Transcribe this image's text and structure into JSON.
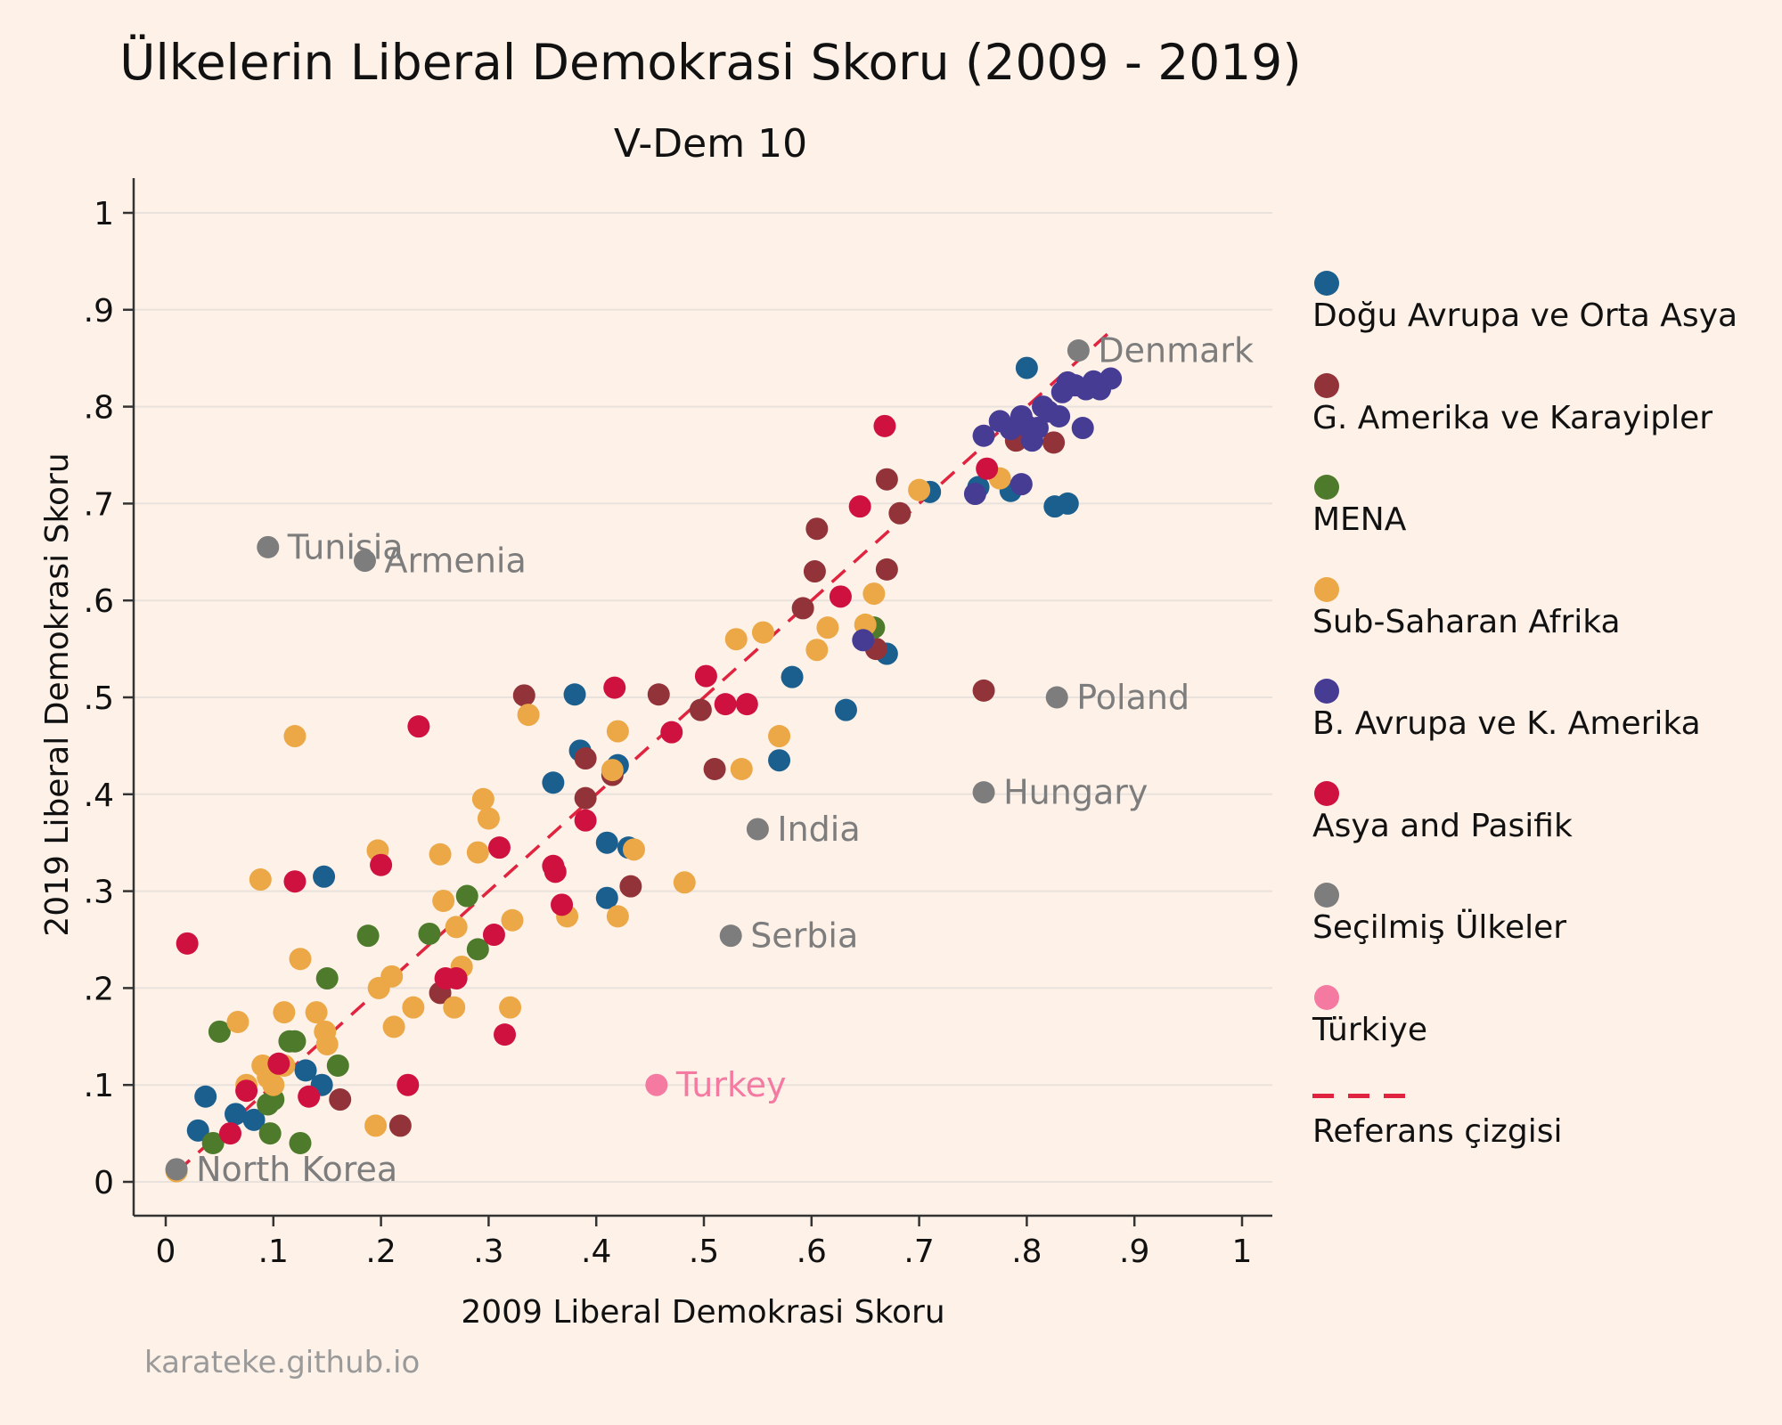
{
  "title": "Ülkelerin Liberal Demokrasi Skoru (2009 - 2019)",
  "subtitle": "V-Dem 10",
  "credit": "karateke.github.io",
  "colors": {
    "background": "#fdf1e8",
    "grid": "#e9e2dc",
    "axis": "#333333",
    "reference": "#e0243f"
  },
  "legend": [
    {
      "key": "eastern_europe",
      "label": "Doğu Avrupa ve Orta Asya",
      "color": "#1b5f8e"
    },
    {
      "key": "latin_america",
      "label": "G. Amerika ve Karayipler",
      "color": "#913339"
    },
    {
      "key": "mena",
      "label": "MENA",
      "color": "#4e7a2c"
    },
    {
      "key": "africa",
      "label": "Sub-Saharan Afrika",
      "color": "#eca846"
    },
    {
      "key": "west",
      "label": "B. Avrupa ve K. Amerika",
      "color": "#463c93"
    },
    {
      "key": "asia",
      "label": "Asya and Pasifik",
      "color": "#cf1140"
    },
    {
      "key": "selected",
      "label": "Seçilmiş Ülkeler",
      "color": "#7d7d7d"
    },
    {
      "key": "turkiye",
      "label": "Türkiye",
      "color": "#f47aa1"
    },
    {
      "key": "reference",
      "label": "Referans çizgisi",
      "color": "#e0243f",
      "style": "dashed-line"
    }
  ],
  "chart_data": {
    "type": "scatter",
    "title": "Ülkelerin Liberal Demokrasi Skoru (2009 - 2019)",
    "subtitle": "V-Dem 10",
    "xlabel": "2009 Liberal Demokrasi Skoru",
    "ylabel": "2019 Liberal Demokrasi Skoru",
    "xlim": [
      0,
      1
    ],
    "ylim": [
      0,
      1
    ],
    "x_ticks": [
      0,
      0.1,
      0.2,
      0.3,
      0.4,
      0.5,
      0.6,
      0.7,
      0.8,
      0.9,
      1
    ],
    "x_tick_labels": [
      "0",
      ".1",
      ".2",
      ".3",
      ".4",
      ".5",
      ".6",
      ".7",
      ".8",
      ".9",
      "1"
    ],
    "y_ticks": [
      0,
      0.1,
      0.2,
      0.3,
      0.4,
      0.5,
      0.6,
      0.7,
      0.8,
      0.9,
      1
    ],
    "y_tick_labels": [
      "0",
      ".1",
      ".2",
      ".3",
      ".4",
      ".5",
      ".6",
      ".7",
      ".8",
      ".9",
      "1"
    ],
    "grid": "horizontal",
    "legend_position": "right",
    "reference_line": {
      "name": "Referans çizgisi",
      "x": [
        0.01,
        0.88
      ],
      "y": [
        0.01,
        0.88
      ],
      "style": "dashed"
    },
    "series": [
      {
        "name": "Doğu Avrupa ve Orta Asya",
        "key": "eastern_europe",
        "points": [
          [
            0.03,
            0.053
          ],
          [
            0.037,
            0.088
          ],
          [
            0.065,
            0.07
          ],
          [
            0.082,
            0.064
          ],
          [
            0.13,
            0.115
          ],
          [
            0.145,
            0.1
          ],
          [
            0.147,
            0.315
          ],
          [
            0.36,
            0.412
          ],
          [
            0.38,
            0.503
          ],
          [
            0.385,
            0.445
          ],
          [
            0.41,
            0.35
          ],
          [
            0.41,
            0.293
          ],
          [
            0.42,
            0.43
          ],
          [
            0.43,
            0.345
          ],
          [
            0.57,
            0.435
          ],
          [
            0.582,
            0.521
          ],
          [
            0.632,
            0.487
          ],
          [
            0.67,
            0.545
          ],
          [
            0.71,
            0.712
          ],
          [
            0.755,
            0.717
          ],
          [
            0.785,
            0.713
          ],
          [
            0.8,
            0.84
          ],
          [
            0.826,
            0.697
          ],
          [
            0.838,
            0.7
          ]
        ]
      },
      {
        "name": "G. Amerika ve Karayipler",
        "key": "latin_america",
        "points": [
          [
            0.162,
            0.085
          ],
          [
            0.218,
            0.058
          ],
          [
            0.255,
            0.195
          ],
          [
            0.333,
            0.502
          ],
          [
            0.39,
            0.437
          ],
          [
            0.39,
            0.396
          ],
          [
            0.415,
            0.42
          ],
          [
            0.432,
            0.305
          ],
          [
            0.458,
            0.503
          ],
          [
            0.497,
            0.487
          ],
          [
            0.51,
            0.426
          ],
          [
            0.592,
            0.592
          ],
          [
            0.603,
            0.63
          ],
          [
            0.605,
            0.674
          ],
          [
            0.66,
            0.55
          ],
          [
            0.67,
            0.725
          ],
          [
            0.67,
            0.632
          ],
          [
            0.682,
            0.69
          ],
          [
            0.76,
            0.507
          ],
          [
            0.79,
            0.765
          ],
          [
            0.825,
            0.763
          ]
        ]
      },
      {
        "name": "MENA",
        "key": "mena",
        "points": [
          [
            0.044,
            0.04
          ],
          [
            0.05,
            0.155
          ],
          [
            0.095,
            0.08
          ],
          [
            0.097,
            0.05
          ],
          [
            0.1,
            0.085
          ],
          [
            0.115,
            0.145
          ],
          [
            0.12,
            0.145
          ],
          [
            0.125,
            0.04
          ],
          [
            0.15,
            0.21
          ],
          [
            0.16,
            0.12
          ],
          [
            0.188,
            0.254
          ],
          [
            0.245,
            0.256
          ],
          [
            0.28,
            0.295
          ],
          [
            0.29,
            0.24
          ],
          [
            0.658,
            0.572
          ]
        ]
      },
      {
        "name": "Sub-Saharan Afrika",
        "key": "africa",
        "points": [
          [
            0.01,
            0.011
          ],
          [
            0.067,
            0.165
          ],
          [
            0.075,
            0.1
          ],
          [
            0.088,
            0.312
          ],
          [
            0.09,
            0.12
          ],
          [
            0.095,
            0.108
          ],
          [
            0.1,
            0.1
          ],
          [
            0.11,
            0.175
          ],
          [
            0.11,
            0.12
          ],
          [
            0.12,
            0.46
          ],
          [
            0.125,
            0.23
          ],
          [
            0.14,
            0.175
          ],
          [
            0.148,
            0.155
          ],
          [
            0.15,
            0.142
          ],
          [
            0.195,
            0.058
          ],
          [
            0.197,
            0.342
          ],
          [
            0.198,
            0.2
          ],
          [
            0.21,
            0.212
          ],
          [
            0.212,
            0.16
          ],
          [
            0.23,
            0.18
          ],
          [
            0.255,
            0.338
          ],
          [
            0.258,
            0.29
          ],
          [
            0.268,
            0.18
          ],
          [
            0.27,
            0.263
          ],
          [
            0.275,
            0.222
          ],
          [
            0.29,
            0.34
          ],
          [
            0.295,
            0.395
          ],
          [
            0.3,
            0.375
          ],
          [
            0.32,
            0.18
          ],
          [
            0.322,
            0.27
          ],
          [
            0.337,
            0.482
          ],
          [
            0.373,
            0.274
          ],
          [
            0.415,
            0.425
          ],
          [
            0.42,
            0.465
          ],
          [
            0.42,
            0.274
          ],
          [
            0.435,
            0.343
          ],
          [
            0.482,
            0.309
          ],
          [
            0.53,
            0.56
          ],
          [
            0.535,
            0.426
          ],
          [
            0.555,
            0.567
          ],
          [
            0.57,
            0.46
          ],
          [
            0.605,
            0.549
          ],
          [
            0.615,
            0.572
          ],
          [
            0.65,
            0.575
          ],
          [
            0.658,
            0.607
          ],
          [
            0.7,
            0.714
          ],
          [
            0.775,
            0.726
          ]
        ]
      },
      {
        "name": "B. Avrupa ve K. Amerika",
        "key": "west",
        "points": [
          [
            0.648,
            0.559
          ],
          [
            0.752,
            0.71
          ],
          [
            0.76,
            0.77
          ],
          [
            0.775,
            0.785
          ],
          [
            0.785,
            0.777
          ],
          [
            0.795,
            0.79
          ],
          [
            0.795,
            0.72
          ],
          [
            0.8,
            0.78
          ],
          [
            0.805,
            0.765
          ],
          [
            0.81,
            0.778
          ],
          [
            0.815,
            0.8
          ],
          [
            0.82,
            0.795
          ],
          [
            0.83,
            0.79
          ],
          [
            0.833,
            0.815
          ],
          [
            0.838,
            0.825
          ],
          [
            0.845,
            0.822
          ],
          [
            0.852,
            0.778
          ],
          [
            0.855,
            0.818
          ],
          [
            0.862,
            0.826
          ],
          [
            0.868,
            0.818
          ],
          [
            0.878,
            0.829
          ]
        ]
      },
      {
        "name": "Asya and Pasifik",
        "key": "asia",
        "points": [
          [
            0.02,
            0.246
          ],
          [
            0.06,
            0.05
          ],
          [
            0.075,
            0.094
          ],
          [
            0.105,
            0.122
          ],
          [
            0.12,
            0.31
          ],
          [
            0.133,
            0.088
          ],
          [
            0.2,
            0.327
          ],
          [
            0.225,
            0.1
          ],
          [
            0.235,
            0.47
          ],
          [
            0.26,
            0.21
          ],
          [
            0.27,
            0.21
          ],
          [
            0.305,
            0.255
          ],
          [
            0.31,
            0.345
          ],
          [
            0.315,
            0.152
          ],
          [
            0.36,
            0.326
          ],
          [
            0.362,
            0.32
          ],
          [
            0.368,
            0.286
          ],
          [
            0.39,
            0.373
          ],
          [
            0.417,
            0.51
          ],
          [
            0.47,
            0.464
          ],
          [
            0.502,
            0.522
          ],
          [
            0.52,
            0.493
          ],
          [
            0.54,
            0.493
          ],
          [
            0.627,
            0.604
          ],
          [
            0.645,
            0.697
          ],
          [
            0.668,
            0.78
          ],
          [
            0.763,
            0.736
          ]
        ]
      },
      {
        "name": "Seçilmiş Ülkeler",
        "key": "selected",
        "points": [
          [
            0.01,
            0.013,
            "North Korea"
          ],
          [
            0.095,
            0.655,
            "Tunisia"
          ],
          [
            0.185,
            0.641,
            "Armenia"
          ],
          [
            0.525,
            0.254,
            "Serbia"
          ],
          [
            0.55,
            0.364,
            "India"
          ],
          [
            0.76,
            0.402,
            "Hungary"
          ],
          [
            0.828,
            0.5,
            "Poland"
          ],
          [
            0.848,
            0.858,
            "Denmark"
          ]
        ]
      },
      {
        "name": "Türkiye",
        "key": "turkiye",
        "points": [
          [
            0.456,
            0.1,
            "Turkey"
          ]
        ]
      }
    ]
  }
}
